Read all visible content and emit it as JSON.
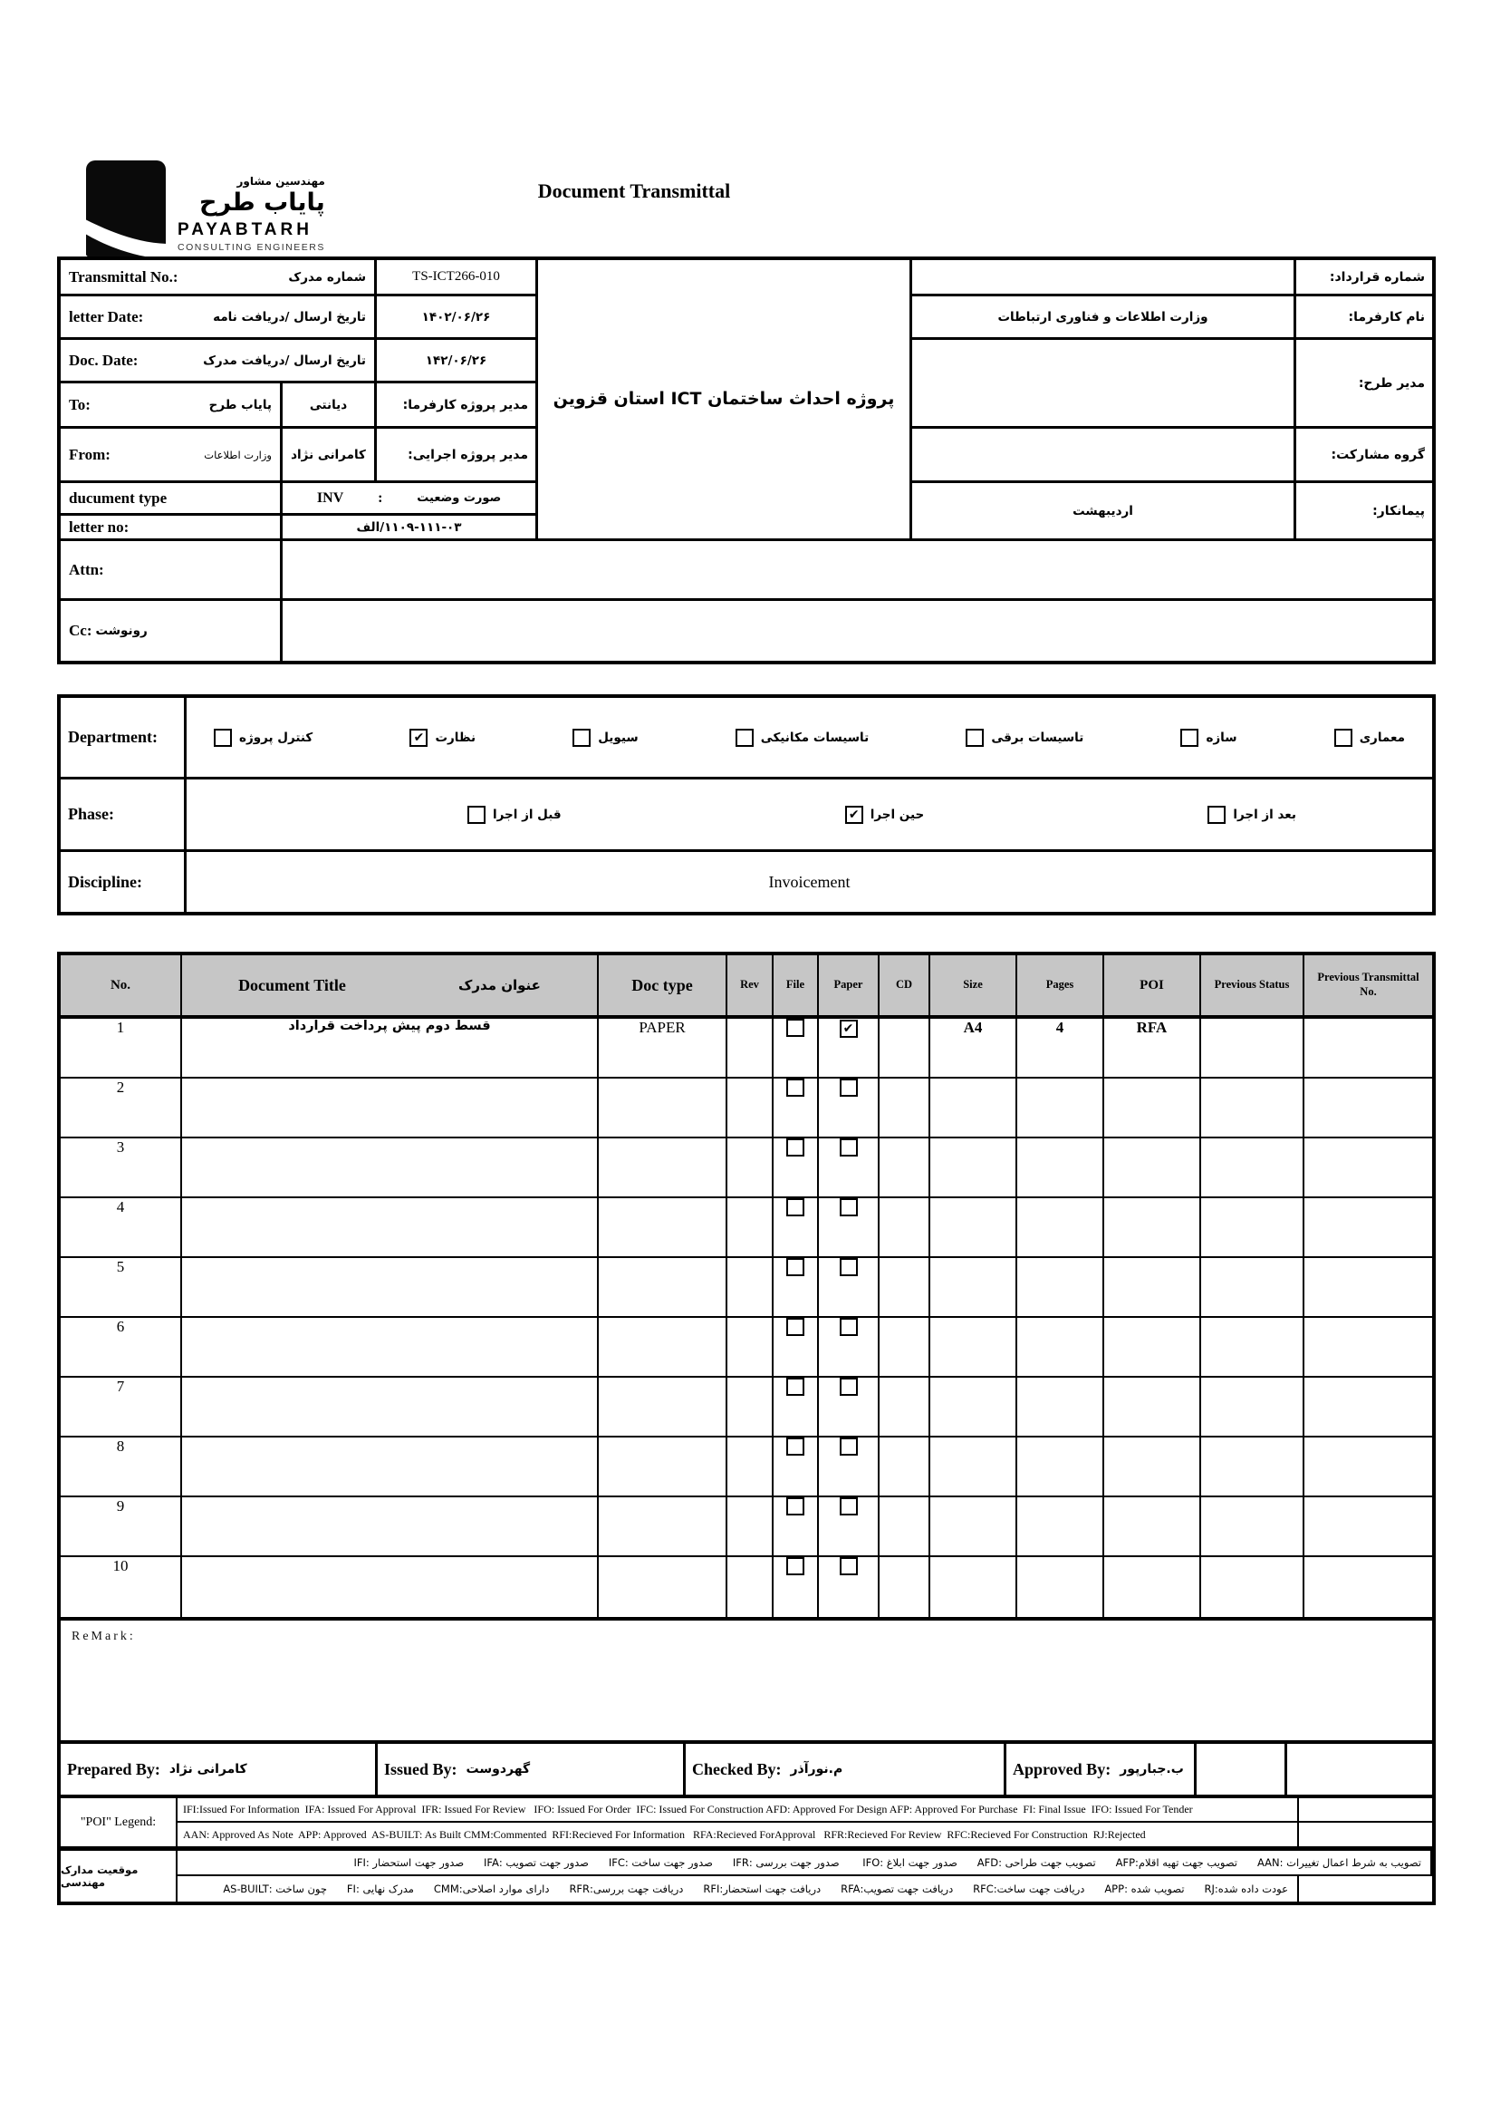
{
  "logo": {
    "fa_line1": "مهندسین مشاور",
    "fa_line2": "پایاب طرح",
    "en_line1": "PAYABTARH",
    "en_line2": "CONSULTING ENGINEERS"
  },
  "title": "Document Transmittal",
  "header": {
    "transmittal_no": {
      "en": "Transmittal No.:",
      "fa": "شماره مدرک",
      "value": "TS-ICT266-010"
    },
    "letter_date": {
      "en": "letter Date:",
      "fa": "تاریخ ارسال /دریافت نامه",
      "value": "۱۴۰۲/۰۶/۲۶"
    },
    "doc_date": {
      "en": "Doc. Date:",
      "fa": "تاریخ ارسال /دریافت مدرک",
      "value": "۱۴۲/۰۶/۲۶"
    },
    "to": {
      "en": "To:",
      "fa": "پایاب طرح",
      "person": "دیانتی",
      "role": "مدیر پروژه کارفرما:"
    },
    "from": {
      "en": "From:",
      "fa": "وزارت اطلاعات",
      "person": "کامرانی نژاد",
      "role": "مدیر پروژه اجرایی:"
    },
    "doc_type": {
      "en": "ducument type",
      "value_latin": "INV",
      "sep": ":",
      "fa": "صورت وضعیت"
    },
    "letter_no": {
      "en": "letter no:",
      "value": "۱۱۰۹-۱۱۱-۰۳/الف"
    },
    "attn": {
      "en": "Attn:",
      "value": ""
    },
    "cc": {
      "en": "Cc:",
      "fa": "رونوشت",
      "value": ""
    },
    "project_title": "پروژه احداث ساختمان ICT استان قزوین",
    "contract_no": {
      "label": "شماره قرارداد:",
      "value": ""
    },
    "client": {
      "label": "نام کارفرما:",
      "value": "وزارت اطلاعات و فناوری ارتباطات"
    },
    "plan_manager": {
      "label": "مدیر طرح:",
      "value": ""
    },
    "partnership": {
      "label": "گروه مشارکت:",
      "value": ""
    },
    "contractor": {
      "label": "پیمانکار:",
      "value": "اردیبهشت"
    }
  },
  "classification": {
    "department_label": "Department:",
    "department_items": [
      {
        "label": "معماری",
        "checked": false
      },
      {
        "label": "سازه",
        "checked": false
      },
      {
        "label": "تاسیسات برقی",
        "checked": false
      },
      {
        "label": "تاسیسات مکانیکی",
        "checked": false
      },
      {
        "label": "سیویل",
        "checked": false
      },
      {
        "label": "نظارت",
        "checked": true
      },
      {
        "label": "کنترل پروژه",
        "checked": false
      }
    ],
    "phase_label": "Phase:",
    "phase_items": [
      {
        "label": "بعد از اجرا",
        "checked": false
      },
      {
        "label": "حین اجرا",
        "checked": true
      },
      {
        "label": "قبل از اجرا",
        "checked": false
      }
    ],
    "discipline_label": "Discipline:",
    "discipline_value": "Invoicement"
  },
  "doc_table": {
    "headers": {
      "no": "No.",
      "title_en": "Document Title",
      "title_fa": "عنوان مدرک",
      "doc_type": "Doc type",
      "rev": "Rev",
      "file": "File",
      "paper": "Paper",
      "cd": "CD",
      "size": "Size",
      "pages": "Pages",
      "poi": "POI",
      "prev_status": "Previous Status",
      "prev_transmittal": "Previous Transmittal No."
    },
    "rows": [
      {
        "no": "1",
        "title": "قسط دوم پیش پرداخت قرارداد",
        "doc_type": "PAPER",
        "rev": "",
        "file": false,
        "paper": true,
        "cd": "",
        "size": "A4",
        "pages": "4",
        "poi": "RFA",
        "prev_status": "",
        "prev_transmittal": ""
      },
      {
        "no": "2",
        "title": "",
        "doc_type": "",
        "rev": "",
        "file": false,
        "paper": false,
        "cd": "",
        "size": "",
        "pages": "",
        "poi": "",
        "prev_status": "",
        "prev_transmittal": ""
      },
      {
        "no": "3",
        "title": "",
        "doc_type": "",
        "rev": "",
        "file": false,
        "paper": false,
        "cd": "",
        "size": "",
        "pages": "",
        "poi": "",
        "prev_status": "",
        "prev_transmittal": ""
      },
      {
        "no": "4",
        "title": "",
        "doc_type": "",
        "rev": "",
        "file": false,
        "paper": false,
        "cd": "",
        "size": "",
        "pages": "",
        "poi": "",
        "prev_status": "",
        "prev_transmittal": ""
      },
      {
        "no": "5",
        "title": "",
        "doc_type": "",
        "rev": "",
        "file": false,
        "paper": false,
        "cd": "",
        "size": "",
        "pages": "",
        "poi": "",
        "prev_status": "",
        "prev_transmittal": ""
      },
      {
        "no": "6",
        "title": "",
        "doc_type": "",
        "rev": "",
        "file": false,
        "paper": false,
        "cd": "",
        "size": "",
        "pages": "",
        "poi": "",
        "prev_status": "",
        "prev_transmittal": ""
      },
      {
        "no": "7",
        "title": "",
        "doc_type": "",
        "rev": "",
        "file": false,
        "paper": false,
        "cd": "",
        "size": "",
        "pages": "",
        "poi": "",
        "prev_status": "",
        "prev_transmittal": ""
      },
      {
        "no": "8",
        "title": "",
        "doc_type": "",
        "rev": "",
        "file": false,
        "paper": false,
        "cd": "",
        "size": "",
        "pages": "",
        "poi": "",
        "prev_status": "",
        "prev_transmittal": ""
      },
      {
        "no": "9",
        "title": "",
        "doc_type": "",
        "rev": "",
        "file": false,
        "paper": false,
        "cd": "",
        "size": "",
        "pages": "",
        "poi": "",
        "prev_status": "",
        "prev_transmittal": ""
      },
      {
        "no": "10",
        "title": "",
        "doc_type": "",
        "rev": "",
        "file": false,
        "paper": false,
        "cd": "",
        "size": "",
        "pages": "",
        "poi": "",
        "prev_status": "",
        "prev_transmittal": ""
      }
    ],
    "remark_label": "ReMark:"
  },
  "signatures": {
    "prepared_label": "Prepared By:",
    "prepared_value": "کامرانی نژاد",
    "issued_label": "Issued By:",
    "issued_value": "گهردوست",
    "checked_label": "Checked By:",
    "checked_value": "م.نورآذر",
    "approved_label": "Approved By:",
    "approved_value": "ب.جبارپور"
  },
  "legend": {
    "poi_label": "\"POI\" Legend:",
    "en_row1": "IFI:Issued For Information  IFA: Issued For Approval  IFR: Issued For Review   IFO: Issued For Order  IFC: Issued For Construction AFD: Approved For Design AFP: Approved For Purchase  FI: Final Issue  IFO: Issued For Tender",
    "en_row2": "AAN: Approved As Note  APP: Approved  AS-BUILT: As Built CMM:Commented  RFI:Recieved For Information   RFA:Recieved ForApproval   RFR:Recieved For Review  RFC:Recieved For Construction  RJ:Rejected",
    "fa_label": "موقعیت مدارک مهندسی",
    "fa_row1": "تصویب به شرط اعمال تغییرات :AAN      تصویب جهت تهیه اقلام:AFP      تصویب جهت طراحی :AFD      صدور جهت ابلاغ :IFO       صدور جهت بررسی :IFR      صدور جهت ساخت :IFC      صدور جهت تصویب :IFA      صدور جهت استحضار :IFI",
    "fa_row2": "عودت داده شده:RJ      تصویب شده :APP      دریافت جهت ساخت:RFC      دریافت جهت تصویب:RFA      دریافت جهت استحضار:RFI      دریافت جهت بررسی:RFR      دارای موارد اصلاحی:CMM      مدرک نهایی :FI      چون ساخت :AS-BUILT"
  }
}
